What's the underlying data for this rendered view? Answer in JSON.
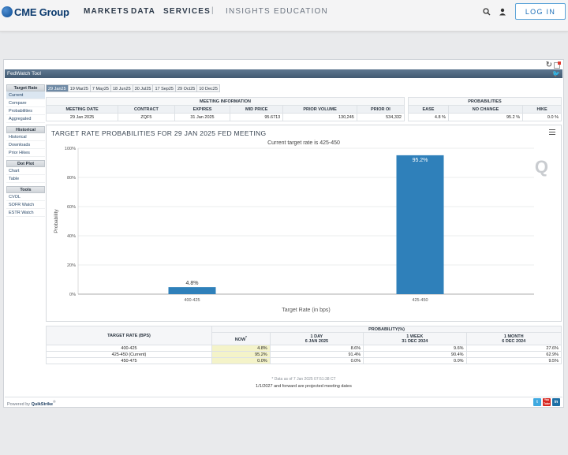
{
  "header": {
    "logo": "CME Group",
    "nav": [
      "MARKETS",
      "DATA",
      "SERVICES"
    ],
    "nav_secondary": [
      "INSIGHTS",
      "EDUCATION"
    ],
    "separator": "|",
    "login_label": "LOG IN"
  },
  "tool": {
    "title": "FedWatch Tool",
    "sidebar": [
      {
        "heading": "Target Rate",
        "items": [
          "Current",
          "Compare",
          "Probabilities",
          "Aggregated"
        ],
        "active": 0
      },
      {
        "heading": "Historical",
        "items": [
          "Historical",
          "Downloads",
          "Prior Hikes"
        ]
      },
      {
        "heading": "Dot Plot",
        "items": [
          "Chart",
          "Table"
        ]
      },
      {
        "heading": "Tools",
        "items": [
          "CVOL",
          "SOFR Watch",
          "ESTR Watch"
        ]
      }
    ],
    "meeting_tabs": [
      "29 Jan25",
      "19 Mar25",
      "7 May25",
      "18 Jun25",
      "30 Jul25",
      "17 Sep25",
      "29 Oct25",
      "10 Dec25"
    ],
    "active_tab": 0,
    "meeting_info": {
      "group_label": "MEETING INFORMATION",
      "headers": [
        "MEETING DATE",
        "CONTRACT",
        "EXPIRES",
        "MID PRICE",
        "PRIOR VOLUME",
        "PRIOR OI"
      ],
      "values": [
        "29 Jan 2025",
        "ZQF5",
        "31 Jan 2025",
        "95.6713",
        "130,245",
        "534,332"
      ]
    },
    "probabilities": {
      "group_label": "PROBABILITIES",
      "headers": [
        "EASE",
        "NO CHANGE",
        "HIKE"
      ],
      "values": [
        "4.8 %",
        "95.2 %",
        "0.0 %"
      ]
    },
    "chart": {
      "title": "TARGET RATE PROBABILITIES FOR 29 JAN 2025 FED MEETING",
      "subtitle": "Current target rate is 425-450"
    },
    "prob_table": {
      "col_target": "TARGET RATE (BPS)",
      "group_label": "PROBABILITY(%)",
      "cols": [
        {
          "line1": "NOW",
          "line2": ""
        },
        {
          "line1": "1 DAY",
          "line2": "6 JAN 2025"
        },
        {
          "line1": "1 WEEK",
          "line2": "31 DEC 2024"
        },
        {
          "line1": "1 MONTH",
          "line2": "6 DEC 2024"
        }
      ],
      "now_marker": "*",
      "rows": [
        {
          "rate": "400-425",
          "values": [
            "4.8%",
            "8.6%",
            "9.6%",
            "27.6%"
          ]
        },
        {
          "rate": "425-450 (Current)",
          "values": [
            "95.2%",
            "91.4%",
            "90.4%",
            "62.9%"
          ]
        },
        {
          "rate": "450-475",
          "values": [
            "0.0%",
            "0.0%",
            "0.0%",
            "9.5%"
          ]
        }
      ],
      "note": "* Data as of 7 Jan 2025 07:51:38 CT",
      "projection_note": "1/1/2027 and forward are projected meeting dates"
    },
    "footer": {
      "prefix": "Powered by",
      "brand": "QuikStrike",
      "mark": "®"
    },
    "social": [
      "t",
      "You Tube",
      "in"
    ]
  },
  "chart_data": {
    "type": "bar",
    "title": "TARGET RATE PROBABILITIES FOR 29 JAN 2025 FED MEETING",
    "subtitle": "Current target rate is 425-450",
    "categories": [
      "400-425",
      "425-450"
    ],
    "values": [
      4.8,
      95.2
    ],
    "data_labels": [
      "4.8%",
      "95.2%"
    ],
    "xlabel": "Target Rate (in bps)",
    "ylabel": "Probability",
    "ylim": [
      0,
      100
    ],
    "yticks": [
      "0%",
      "20%",
      "40%",
      "60%",
      "80%",
      "100%"
    ],
    "grid": true,
    "colors": {
      "bar": "#2f80ba",
      "grid": "#e4e6e9"
    }
  }
}
